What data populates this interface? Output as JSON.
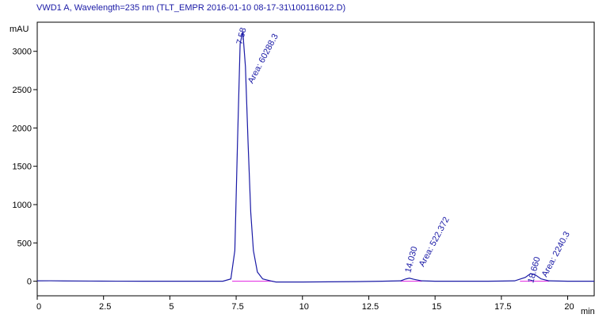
{
  "chart_data": {
    "type": "line",
    "title": "VWD1 A, Wavelength=235 nm (TLT_EMPR 2016-01-10 08-17-31\\100116012.D)",
    "y_label": "mAU",
    "x_label": "min",
    "x": [
      0,
      0.5,
      1,
      2,
      3,
      4,
      5,
      6,
      7,
      7.3,
      7.45,
      7.55,
      7.65,
      7.75,
      7.85,
      7.95,
      8.05,
      8.15,
      8.3,
      8.5,
      8.8,
      9,
      10,
      11,
      12,
      13,
      13.7,
      13.9,
      14.03,
      14.2,
      14.5,
      15,
      16,
      17,
      18,
      18.4,
      18.6,
      18.75,
      19,
      19.3,
      20,
      21
    ],
    "series": [
      {
        "name": "VWD1 A",
        "color": "#1a1aa6",
        "values": [
          5,
          6,
          4,
          2,
          1,
          0,
          0,
          0,
          0,
          30,
          400,
          1800,
          3100,
          3260,
          2800,
          1800,
          900,
          400,
          120,
          30,
          5,
          -10,
          -10,
          -8,
          -5,
          0,
          5,
          30,
          40,
          25,
          5,
          0,
          0,
          0,
          5,
          50,
          100,
          90,
          30,
          5,
          0,
          0
        ]
      }
    ],
    "xlim": [
      0,
      21
    ],
    "ylim": [
      -190,
      3380
    ],
    "xticks": [
      0,
      2.5,
      5,
      7.5,
      10,
      12.5,
      15,
      17.5,
      20
    ],
    "yticks": [
      0,
      500,
      1000,
      1500,
      2000,
      2500,
      3000
    ],
    "annotations": [
      {
        "x": 7.58,
        "time_label": "7.58",
        "area_label": "Area: 60288.3"
      },
      {
        "x": 14.03,
        "time_label": "14.030",
        "area_label": "Area: 522.372"
      },
      {
        "x": 18.66,
        "time_label": "18.660",
        "area_label": "Area: 2240.3"
      }
    ]
  }
}
